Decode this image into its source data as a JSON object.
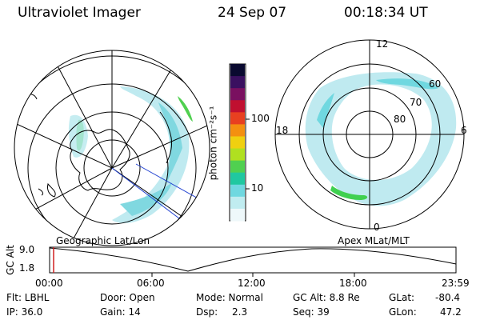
{
  "header": {
    "title": "Ultraviolet Imager",
    "date": "24 Sep 07",
    "time": "00:18:34 UT"
  },
  "left_panel": {
    "caption": "Geographic Lat/Lon"
  },
  "right_panel": {
    "caption": "Apex MLat/MLT",
    "mlt_labels": {
      "top": "12",
      "left": "18",
      "right": "6",
      "bottom": "0"
    },
    "lat_labels": [
      "60",
      "70",
      "80"
    ]
  },
  "colorbar": {
    "unit_label": "photon cm⁻²s⁻¹",
    "ticks": [
      "100",
      "10"
    ],
    "colors": [
      "#0a0a30",
      "#3a1060",
      "#7a1060",
      "#c01030",
      "#e84020",
      "#f49010",
      "#f0d010",
      "#b0e020",
      "#50d050",
      "#20c8a0",
      "#70d8e0",
      "#c0ecf0",
      "#eef8fa"
    ]
  },
  "alt_plot": {
    "axis_label": "GC Alt",
    "y_top": "9.0",
    "y_bottom": "1.8",
    "x_ticks": [
      "00:00",
      "06:00",
      "12:00",
      "18:00",
      "23:59"
    ]
  },
  "info": {
    "row1": {
      "flt": "Flt: LBHL",
      "door": "Door: Open",
      "mode": "Mode: Normal",
      "gc_alt": "GC Alt: 8.8 Re",
      "glat_label": "GLat:",
      "glat_value": "-80.4"
    },
    "row2": {
      "ip": "IP: 36.0",
      "gain": "Gain: 14",
      "dsp_label": "Dsp:",
      "dsp_value": "2.3",
      "seq": "Seq: 39",
      "glon_label": "GLon:",
      "glon_value": "47.2"
    }
  }
}
